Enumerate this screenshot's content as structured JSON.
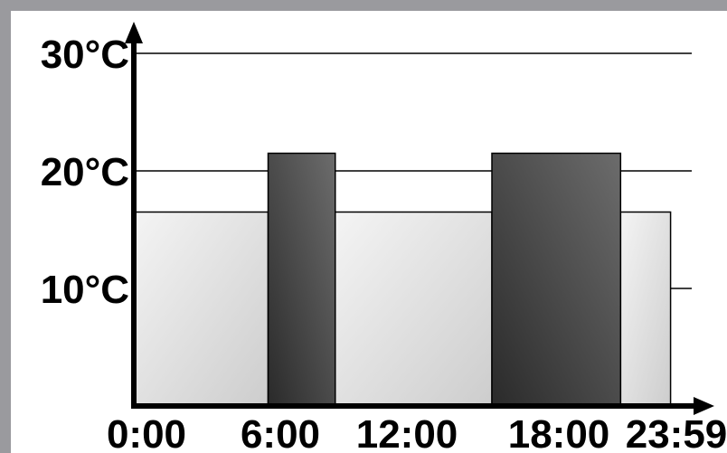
{
  "chart_data": {
    "type": "bar",
    "title": "",
    "xlabel": "",
    "ylabel": "",
    "x_ticks": [
      "0:00",
      "6:00",
      "12:00",
      "18:00",
      "23:59"
    ],
    "y_ticks": [
      "30°C",
      "20°C",
      "10°C"
    ],
    "y_tick_values": [
      30,
      20,
      10
    ],
    "ylim": [
      0,
      30
    ],
    "x_range_hours": [
      0,
      24
    ],
    "segments": [
      {
        "start": "0:00",
        "end": "6:00",
        "value": 16.5,
        "level": "low"
      },
      {
        "start": "6:00",
        "end": "9:00",
        "value": 21.5,
        "level": "high"
      },
      {
        "start": "9:00",
        "end": "16:00",
        "value": 16.5,
        "level": "low"
      },
      {
        "start": "16:00",
        "end": "21:45",
        "value": 21.5,
        "level": "high"
      },
      {
        "start": "21:45",
        "end": "23:59",
        "value": 16.5,
        "level": "low"
      }
    ],
    "gridlines": [
      30,
      20
    ],
    "grid": true,
    "colors": {
      "low_fill_light": "#f4f4f4",
      "low_fill_dark": "#cdcdcd",
      "high_fill_light": "#6c6c6c",
      "high_fill_dark": "#2a2a2a",
      "axis": "#000000",
      "frame": "#9a9a9e"
    }
  }
}
